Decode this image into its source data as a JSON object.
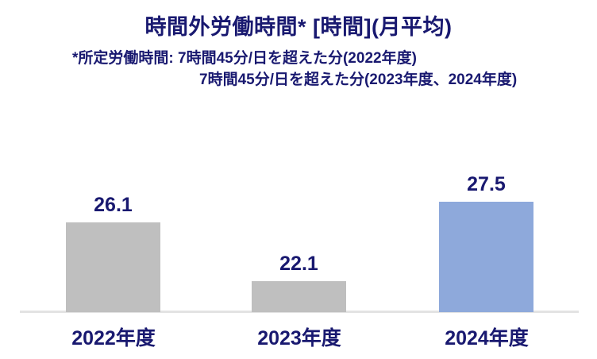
{
  "title": "時間外労働時間* [時間](月平均)",
  "footnote": {
    "line1": "*所定労働時間: 7時間45分/日を超えた分(2022年度)",
    "line2": "7時間45分/日を超えた分(2023年度、2024年度)"
  },
  "chart_data": {
    "type": "bar",
    "title": "時間外労働時間* [時間](月平均)",
    "categories": [
      "2022年度",
      "2023年度",
      "2024年度"
    ],
    "values": [
      26.1,
      22.1,
      27.5
    ],
    "value_labels": [
      "26.1",
      "22.1",
      "27.5"
    ],
    "bar_colors": [
      "#BFBFBF",
      "#BFBFBF",
      "#8EA9DB"
    ],
    "baseline": 20,
    "ylim": [
      20,
      28
    ],
    "xlabel": "",
    "ylabel": "",
    "grid": false,
    "legend": false,
    "annotations": [
      "*所定労働時間: 7時間45分/日を超えた分(2022年度)",
      "7時間45分/日を超えた分(2023年度、2024年度)"
    ]
  },
  "colors": {
    "text_navy": "#191970",
    "bar_gray": "#BFBFBF",
    "bar_blue": "#8EA9DB",
    "axis_line": "#E3E3E3",
    "background": "#FFFFFF"
  }
}
